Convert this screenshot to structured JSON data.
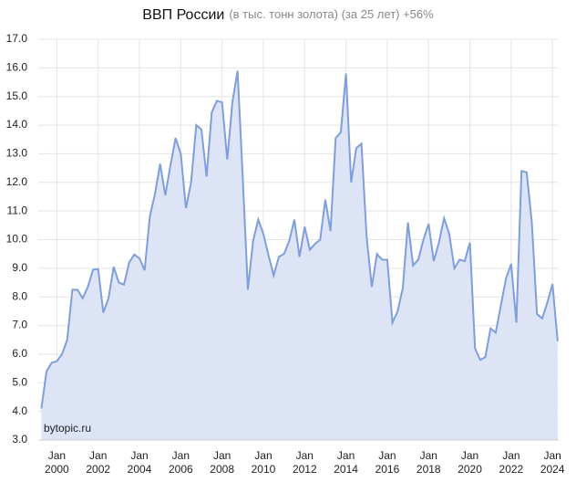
{
  "chart_data": {
    "type": "area",
    "title": "ВВП России",
    "subtitle": "(в тыс. тонн золота) (за 25 лет) +56%",
    "annotation": "bytopic.ru",
    "x": [
      1999.25,
      1999.5,
      1999.75,
      2000,
      2000.25,
      2000.5,
      2000.75,
      2001,
      2001.25,
      2001.5,
      2001.75,
      2002,
      2002.25,
      2002.5,
      2002.75,
      2003,
      2003.25,
      2003.5,
      2003.75,
      2004,
      2004.25,
      2004.5,
      2004.75,
      2005,
      2005.25,
      2005.5,
      2005.75,
      2006,
      2006.25,
      2006.5,
      2006.75,
      2007,
      2007.25,
      2007.5,
      2007.75,
      2008,
      2008.25,
      2008.5,
      2008.75,
      2009,
      2009.25,
      2009.5,
      2009.75,
      2010,
      2010.25,
      2010.5,
      2010.75,
      2011,
      2011.25,
      2011.5,
      2011.75,
      2012,
      2012.25,
      2012.5,
      2012.75,
      2013,
      2013.25,
      2013.5,
      2013.75,
      2014,
      2014.25,
      2014.5,
      2014.75,
      2015,
      2015.25,
      2015.5,
      2015.75,
      2016,
      2016.25,
      2016.5,
      2016.75,
      2017,
      2017.25,
      2017.5,
      2017.75,
      2018,
      2018.25,
      2018.5,
      2018.75,
      2019,
      2019.25,
      2019.5,
      2019.75,
      2020,
      2020.25,
      2020.5,
      2020.75,
      2021,
      2021.25,
      2021.5,
      2021.75,
      2022,
      2022.25,
      2022.5,
      2022.75,
      2023,
      2023.25,
      2023.5,
      2023.75,
      2024,
      2024.25
    ],
    "series": [
      {
        "name": "ВВП России",
        "color": "#7f9edb",
        "fill": "#dce4f6",
        "values": [
          4.1,
          5.4,
          5.7,
          5.75,
          6.0,
          6.5,
          8.25,
          8.25,
          7.95,
          8.35,
          8.95,
          8.97,
          7.45,
          7.95,
          9.05,
          8.5,
          8.43,
          9.2,
          9.48,
          9.35,
          8.93,
          10.8,
          11.6,
          12.65,
          11.55,
          12.6,
          13.55,
          13.0,
          11.1,
          12.0,
          14.0,
          13.85,
          12.2,
          14.45,
          14.85,
          14.8,
          12.8,
          14.8,
          15.9,
          12.2,
          8.25,
          9.95,
          10.7,
          10.2,
          9.45,
          8.75,
          9.4,
          9.5,
          9.95,
          10.7,
          9.4,
          10.45,
          9.65,
          9.85,
          10.0,
          11.4,
          10.3,
          13.55,
          13.75,
          15.8,
          12.0,
          13.2,
          13.35,
          10.1,
          8.35,
          9.5,
          9.3,
          9.3,
          7.1,
          7.5,
          8.3,
          10.6,
          9.1,
          9.3,
          10.0,
          10.55,
          9.25,
          9.9,
          10.75,
          10.2,
          9.0,
          9.3,
          9.25,
          9.9,
          6.2,
          5.8,
          5.9,
          6.9,
          6.75,
          7.7,
          8.65,
          9.15,
          7.1,
          12.4,
          12.35,
          10.6,
          7.4,
          7.25,
          7.8,
          8.45,
          6.45
        ]
      }
    ],
    "xlim": [
      1999.1,
      2024.3
    ],
    "ylim": [
      3,
      17
    ],
    "xticks": [
      {
        "value": 2000,
        "label": "Jan 2000"
      },
      {
        "value": 2002,
        "label": "Jan 2002"
      },
      {
        "value": 2004,
        "label": "Jan 2004"
      },
      {
        "value": 2006,
        "label": "Jan 2006"
      },
      {
        "value": 2008,
        "label": "Jan 2008"
      },
      {
        "value": 2010,
        "label": "Jan 2010"
      },
      {
        "value": 2012,
        "label": "Jan 2012"
      },
      {
        "value": 2014,
        "label": "Jan 2014"
      },
      {
        "value": 2016,
        "label": "Jan 2016"
      },
      {
        "value": 2018,
        "label": "Jan 2018"
      },
      {
        "value": 2020,
        "label": "Jan 2020"
      },
      {
        "value": 2022,
        "label": "Jan 2022"
      },
      {
        "value": 2024,
        "label": "Jan 2024"
      }
    ],
    "yticks": [
      {
        "value": 3,
        "label": "3.0"
      },
      {
        "value": 4,
        "label": "4.0"
      },
      {
        "value": 5,
        "label": "5.0"
      },
      {
        "value": 6,
        "label": "6.0"
      },
      {
        "value": 7,
        "label": "7.0"
      },
      {
        "value": 8,
        "label": "8.0"
      },
      {
        "value": 9,
        "label": "9.0"
      },
      {
        "value": 10,
        "label": "10.0"
      },
      {
        "value": 11,
        "label": "11.0"
      },
      {
        "value": 12,
        "label": "12.0"
      },
      {
        "value": 13,
        "label": "13.0"
      },
      {
        "value": 14,
        "label": "14.0"
      },
      {
        "value": 15,
        "label": "15.0"
      },
      {
        "value": 16,
        "label": "16.0"
      },
      {
        "value": 17,
        "label": "17.0"
      }
    ],
    "grid": true
  }
}
